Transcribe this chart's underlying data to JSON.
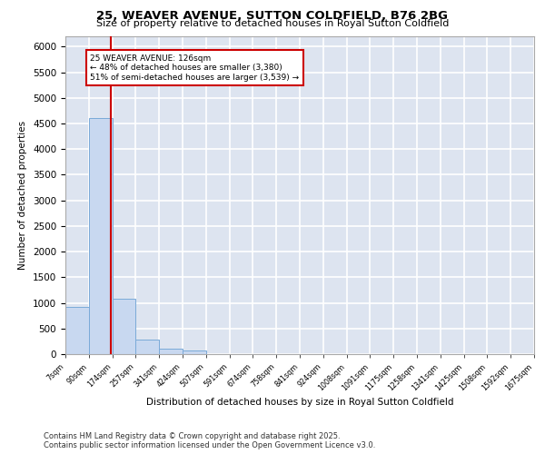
{
  "title1": "25, WEAVER AVENUE, SUTTON COLDFIELD, B76 2BG",
  "title2": "Size of property relative to detached houses in Royal Sutton Coldfield",
  "xlabel": "Distribution of detached houses by size in Royal Sutton Coldfield",
  "ylabel": "Number of detached properties",
  "annotation_line1": "25 WEAVER AVENUE: 126sqm",
  "annotation_line2": "← 48% of detached houses are smaller (3,380)",
  "annotation_line3": "51% of semi-detached houses are larger (3,539) →",
  "bin_labels": [
    "7sqm",
    "90sqm",
    "174sqm",
    "257sqm",
    "341sqm",
    "424sqm",
    "507sqm",
    "591sqm",
    "674sqm",
    "758sqm",
    "841sqm",
    "924sqm",
    "1008sqm",
    "1091sqm",
    "1175sqm",
    "1258sqm",
    "1341sqm",
    "1425sqm",
    "1508sqm",
    "1592sqm",
    "1675sqm"
  ],
  "bar_values": [
    925,
    4600,
    1075,
    290,
    100,
    70,
    0,
    0,
    0,
    0,
    0,
    0,
    0,
    0,
    0,
    0,
    0,
    0,
    0,
    0
  ],
  "bar_color": "#c8d8f0",
  "bar_edge_color": "#7aaad8",
  "ylim": [
    0,
    6200
  ],
  "yticks": [
    0,
    500,
    1000,
    1500,
    2000,
    2500,
    3000,
    3500,
    4000,
    4500,
    5000,
    5500,
    6000
  ],
  "background_color": "#dde4f0",
  "grid_color": "#ffffff",
  "footer_line1": "Contains HM Land Registry data © Crown copyright and database right 2025.",
  "footer_line2": "Contains public sector information licensed under the Open Government Licence v3.0."
}
